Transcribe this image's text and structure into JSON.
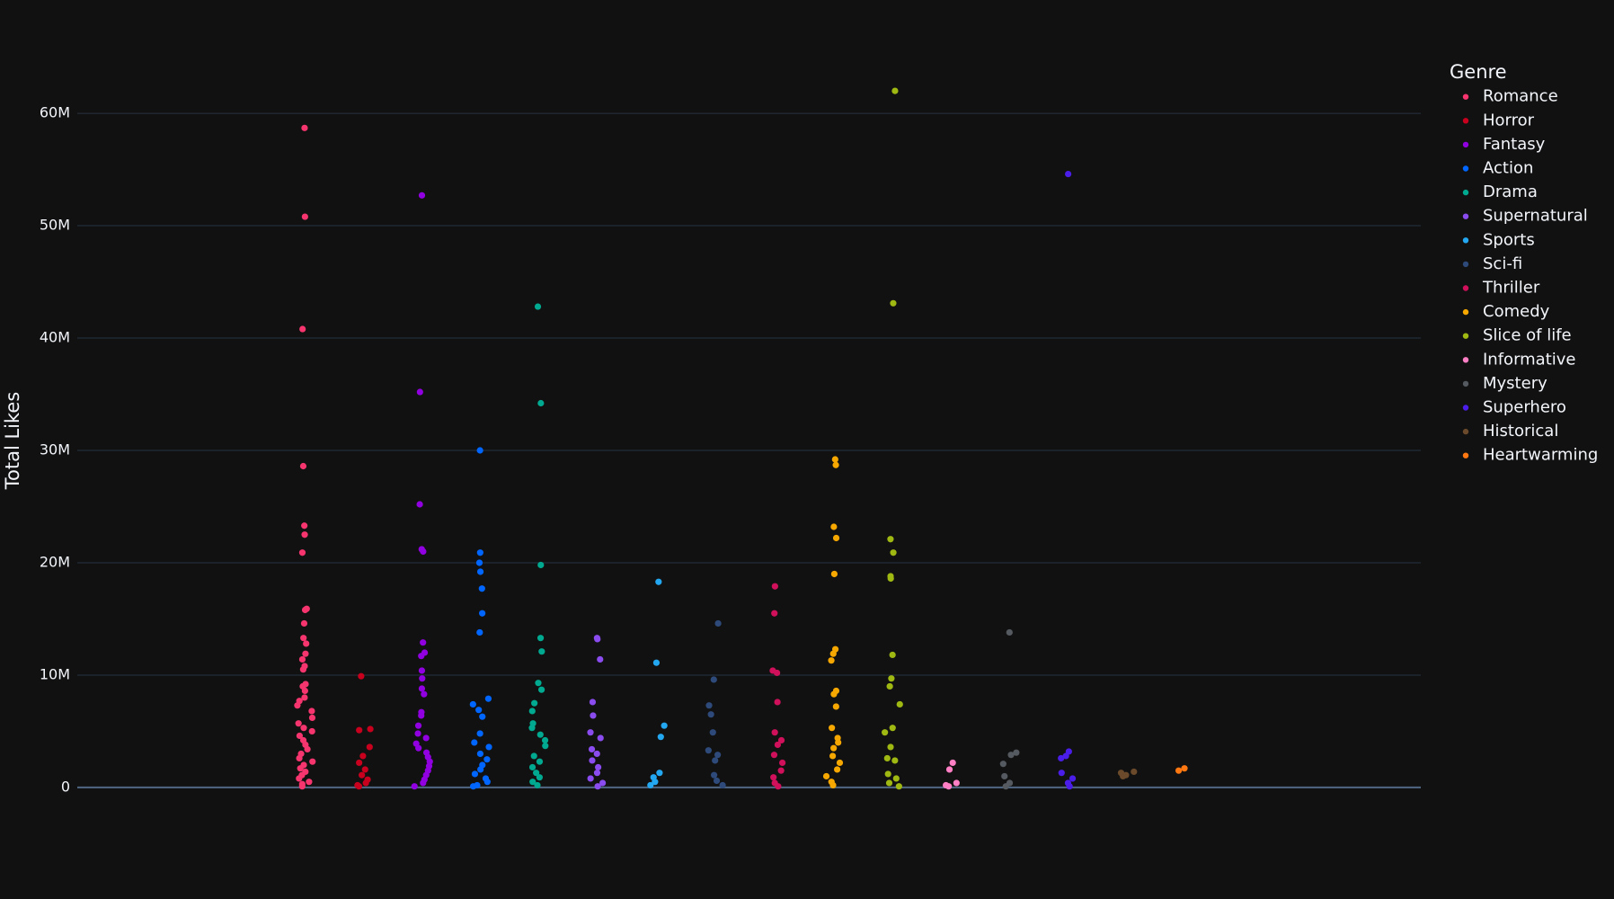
{
  "chart_data": {
    "type": "strip",
    "y_axis_label": "Total Likes",
    "legend_title": "Genre",
    "legend_position": "right",
    "grid": true,
    "ylim": [
      -7000000,
      65000000
    ],
    "yticks": [
      {
        "value": 0,
        "label": "0"
      },
      {
        "value": 10000000,
        "label": "10M"
      },
      {
        "value": 20000000,
        "label": "20M"
      },
      {
        "value": 30000000,
        "label": "30M"
      },
      {
        "value": 40000000,
        "label": "40M"
      },
      {
        "value": 50000000,
        "label": "50M"
      },
      {
        "value": 60000000,
        "label": "60M"
      }
    ],
    "series": [
      {
        "name": "Romance",
        "color": "#f6356f",
        "values": [
          58700000,
          50800000,
          40800000,
          28600000,
          23300000,
          22500000,
          20900000,
          15900000,
          15800000,
          14600000,
          13300000,
          12800000,
          11900000,
          11400000,
          10800000,
          10500000,
          9200000,
          9000000,
          8600000,
          8000000,
          7700000,
          7300000,
          6800000,
          6200000,
          5700000,
          5300000,
          5000000,
          4600000,
          4200000,
          3800000,
          3400000,
          3000000,
          2600000,
          2300000,
          2000000,
          1700000,
          1400000,
          1100000,
          800000,
          500000,
          300000,
          100000
        ]
      },
      {
        "name": "Horror",
        "color": "#c8001e",
        "values": [
          9900000,
          5200000,
          5100000,
          3600000,
          2800000,
          2200000,
          1600000,
          1100000,
          700000,
          400000,
          200000,
          100000
        ]
      },
      {
        "name": "Fantasy",
        "color": "#9000e0",
        "values": [
          52700000,
          35200000,
          25200000,
          21200000,
          21000000,
          12900000,
          12000000,
          11700000,
          10400000,
          9700000,
          8800000,
          8300000,
          6700000,
          6400000,
          5500000,
          4800000,
          4400000,
          3900000,
          3500000,
          3100000,
          2700000,
          2300000,
          1900000,
          1500000,
          1100000,
          700000,
          400000,
          100000
        ]
      },
      {
        "name": "Action",
        "color": "#0066ff",
        "values": [
          30000000,
          20900000,
          20000000,
          19200000,
          17700000,
          15500000,
          13800000,
          7900000,
          7400000,
          6900000,
          6300000,
          4800000,
          4000000,
          3600000,
          3000000,
          2500000,
          2000000,
          1600000,
          1200000,
          800000,
          500000,
          200000,
          100000
        ]
      },
      {
        "name": "Drama",
        "color": "#00a98f",
        "values": [
          42800000,
          34200000,
          19800000,
          13300000,
          12100000,
          9300000,
          8700000,
          7500000,
          6800000,
          5700000,
          5300000,
          4700000,
          4200000,
          3700000,
          2800000,
          2300000,
          1800000,
          1300000,
          900000,
          500000,
          200000
        ]
      },
      {
        "name": "Supernatural",
        "color": "#8a4bef",
        "values": [
          13300000,
          13200000,
          11400000,
          7600000,
          6400000,
          4900000,
          4400000,
          3400000,
          3000000,
          2400000,
          1800000,
          1300000,
          800000,
          400000,
          100000
        ]
      },
      {
        "name": "Sports",
        "color": "#22a7f0",
        "values": [
          18300000,
          11100000,
          5500000,
          4500000,
          1300000,
          900000,
          500000,
          200000
        ]
      },
      {
        "name": "Sci-fi",
        "color": "#2e4a7a",
        "values": [
          14600000,
          9600000,
          7300000,
          6500000,
          4900000,
          3300000,
          2900000,
          2400000,
          1100000,
          600000,
          200000
        ]
      },
      {
        "name": "Thriller",
        "color": "#d0105a",
        "values": [
          17900000,
          15500000,
          10400000,
          10200000,
          7600000,
          4900000,
          4200000,
          3800000,
          2900000,
          2200000,
          1500000,
          900000,
          400000,
          100000
        ]
      },
      {
        "name": "Comedy",
        "color": "#f7a800",
        "values": [
          29200000,
          28700000,
          23200000,
          22200000,
          19000000,
          12300000,
          11900000,
          11300000,
          8600000,
          8300000,
          7200000,
          5300000,
          4400000,
          4000000,
          3500000,
          2800000,
          2200000,
          1600000,
          1000000,
          500000,
          200000
        ]
      },
      {
        "name": "Slice of life",
        "color": "#a0b812",
        "values": [
          62000000,
          43100000,
          22100000,
          20900000,
          18800000,
          18600000,
          11800000,
          9700000,
          9000000,
          7400000,
          5300000,
          4900000,
          3600000,
          2600000,
          2400000,
          1200000,
          800000,
          400000,
          100000
        ]
      },
      {
        "name": "Informative",
        "color": "#ff7fc5",
        "values": [
          2200000,
          1600000,
          400000,
          200000,
          100000
        ]
      },
      {
        "name": "Mystery",
        "color": "#555a60",
        "values": [
          13800000,
          3100000,
          2900000,
          2100000,
          1000000,
          400000,
          100000
        ]
      },
      {
        "name": "Superhero",
        "color": "#4a1ee8",
        "values": [
          54600000,
          3200000,
          2800000,
          2600000,
          1300000,
          800000,
          400000,
          100000
        ]
      },
      {
        "name": "Historical",
        "color": "#6b4a2b",
        "values": [
          1400000,
          1300000,
          1100000,
          1000000
        ]
      },
      {
        "name": "Heartwarming",
        "color": "#ff7711",
        "values": [
          1700000,
          1500000
        ]
      }
    ]
  }
}
